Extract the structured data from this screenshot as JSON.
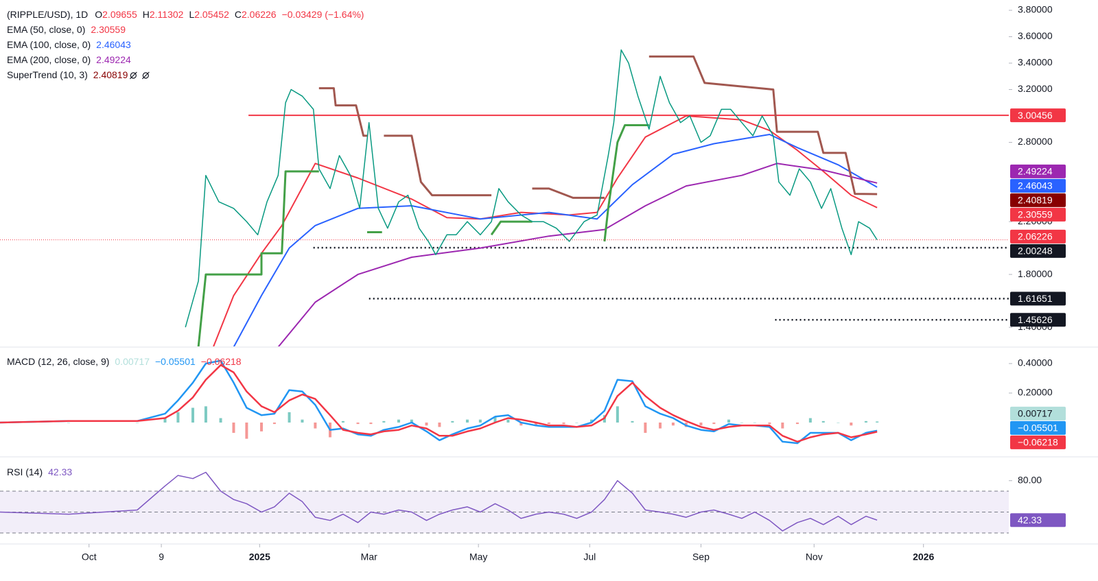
{
  "chart_data": [
    {
      "type": "line",
      "title": "(RIPPLE/USD), 1D",
      "ohlc": [
        {
          "label": "O",
          "value": 2.09655
        },
        {
          "label": "H",
          "value": 2.11302
        },
        {
          "label": "L",
          "value": 2.05452
        },
        {
          "label": "C",
          "value": 2.06226
        }
      ],
      "change": "−0.03429 (−1.64%)",
      "grid": false,
      "xlim": [
        0,
        544
      ],
      "xticks": [
        {
          "value": 48,
          "label": "Oct"
        },
        {
          "value": 87,
          "label": "9"
        },
        {
          "value": 140,
          "label": "2025"
        },
        {
          "value": 199,
          "label": "Mar"
        },
        {
          "value": 258,
          "label": "May"
        },
        {
          "value": 318,
          "label": "Jul"
        },
        {
          "value": 378,
          "label": "Sep"
        },
        {
          "value": 439,
          "label": "Nov"
        },
        {
          "value": 498,
          "label": "2026"
        }
      ],
      "ylim": [
        1.255,
        3.878
      ],
      "yticks": [
        {
          "value": 1.4,
          "label": "1.40000"
        },
        {
          "value": 1.8,
          "label": "1.80000"
        },
        {
          "value": 2.2,
          "label": "2.20000"
        },
        {
          "value": 2.8,
          "label": "2.80000"
        },
        {
          "value": 3.2,
          "label": "3.20000"
        },
        {
          "value": 3.4,
          "label": "3.40000"
        },
        {
          "value": 3.6,
          "label": "3.60000"
        },
        {
          "value": 3.8,
          "label": "3.80000"
        }
      ],
      "close": {
        "color": "#089981",
        "last_color": "#f23645",
        "x": [
          100,
          107,
          111,
          118,
          126,
          133,
          139,
          144,
          150,
          154,
          157,
          163,
          169,
          172,
          178,
          183,
          189,
          194,
          199,
          204,
          209,
          215,
          220,
          226,
          231,
          235,
          241,
          246,
          252,
          259,
          265,
          269,
          274,
          281,
          287,
          293,
          300,
          307,
          315,
          322,
          328,
          331,
          335,
          339,
          344,
          350,
          356,
          361,
          367,
          372,
          378,
          383,
          389,
          394,
          400,
          406,
          411,
          417,
          420,
          426,
          431,
          437,
          443,
          448,
          454,
          459,
          463,
          469,
          473
        ],
        "values": [
          1.4,
          1.75,
          2.55,
          2.35,
          2.3,
          2.2,
          2.1,
          2.35,
          2.55,
          3.1,
          3.2,
          3.15,
          3.05,
          2.6,
          2.45,
          2.7,
          2.55,
          2.3,
          2.95,
          2.3,
          2.15,
          2.35,
          2.4,
          2.15,
          2.05,
          1.95,
          2.1,
          2.1,
          2.2,
          2.1,
          2.2,
          2.45,
          2.35,
          2.25,
          2.2,
          2.2,
          2.15,
          2.05,
          2.2,
          2.25,
          2.7,
          2.95,
          3.5,
          3.4,
          3.15,
          2.9,
          3.3,
          3.1,
          2.95,
          3.0,
          2.8,
          2.85,
          3.05,
          3.05,
          2.95,
          2.85,
          3.0,
          2.85,
          2.5,
          2.4,
          2.6,
          2.5,
          2.3,
          2.45,
          2.15,
          1.95,
          2.2,
          2.15,
          2.06226
        ]
      },
      "series": [
        {
          "name": "EMA (50, close, 0)",
          "color": "#f23645",
          "x": [
            115,
            126,
            141,
            152,
            170,
            193,
            222,
            241,
            259,
            281,
            307,
            322,
            333,
            348,
            370,
            400,
            415,
            430,
            444,
            459,
            473
          ],
          "values": [
            1.25,
            1.64,
            1.96,
            2.17,
            2.64,
            2.53,
            2.37,
            2.23,
            2.22,
            2.27,
            2.25,
            2.27,
            2.53,
            2.84,
            3.0,
            2.97,
            2.89,
            2.74,
            2.58,
            2.4,
            2.30559
          ]
        },
        {
          "name": "EMA (100, close, 0)",
          "color": "#2962ff",
          "x": [
            126,
            141,
            156,
            170,
            193,
            222,
            259,
            296,
            322,
            341,
            363,
            385,
            415,
            430,
            452,
            473
          ],
          "values": [
            1.25,
            1.64,
            2.0,
            2.17,
            2.3,
            2.32,
            2.22,
            2.27,
            2.22,
            2.48,
            2.71,
            2.79,
            2.86,
            2.76,
            2.63,
            2.46043
          ]
        },
        {
          "name": "EMA (200, close, 0)",
          "color": "#9c27b0",
          "x": [
            150,
            170,
            193,
            222,
            259,
            296,
            326,
            348,
            370,
            400,
            419,
            444,
            473
          ],
          "values": [
            1.25,
            1.59,
            1.8,
            1.93,
            2.0,
            2.09,
            2.14,
            2.32,
            2.47,
            2.55,
            2.64,
            2.59,
            2.49224
          ]
        }
      ],
      "supertrend": {
        "name": "SuperTrend (10, 3)",
        "up_color": "#43a047",
        "down_color": "#a1574f",
        "value_color": "#880000",
        "up": {
          "x": [
            107,
            111,
            141,
            141,
            152,
            154,
            172,
            null,
            198,
            206,
            null,
            265,
            270,
            287,
            null,
            326,
            328,
            333,
            337,
            350
          ],
          "values": [
            1.25,
            1.8,
            1.8,
            1.96,
            1.96,
            2.58,
            2.58,
            null,
            2.12,
            2.12,
            null,
            2.1,
            2.2,
            2.2,
            null,
            2.05,
            2.3,
            2.8,
            2.93,
            2.93
          ]
        },
        "down": {
          "x": [
            172,
            180,
            181,
            192,
            196,
            198,
            null,
            207,
            222,
            227,
            233,
            265,
            null,
            287,
            296,
            309,
            326,
            null,
            350,
            374,
            380,
            417,
            419,
            441,
            444,
            456,
            461,
            473
          ],
          "values": [
            3.21,
            3.21,
            3.08,
            3.08,
            2.85,
            2.85,
            null,
            2.85,
            2.85,
            2.5,
            2.4,
            2.4,
            null,
            2.45,
            2.45,
            2.38,
            2.38,
            null,
            3.45,
            3.45,
            3.25,
            3.2,
            2.88,
            2.88,
            2.72,
            2.72,
            2.41,
            2.40819
          ]
        }
      },
      "levels": [
        {
          "value": 3.00456,
          "from": 134,
          "color": "#f23645",
          "style": "solid"
        },
        {
          "value": 2.00248,
          "from": 169,
          "color": "#131722",
          "style": "dotted"
        },
        {
          "value": 1.61651,
          "from": 199,
          "color": "#131722",
          "style": "dotted"
        },
        {
          "value": 1.45626,
          "from": 418,
          "color": "#131722",
          "style": "dotted"
        }
      ]
    },
    {
      "type": "macd",
      "title": "MACD (12, 26, close, 9)",
      "ylim": [
        -0.228,
        0.507
      ],
      "yticks": [
        {
          "value": 0.2,
          "label": "0.20000"
        },
        {
          "value": 0.4,
          "label": "0.40000"
        }
      ],
      "x": [
        0,
        37,
        74,
        89,
        96,
        104,
        111,
        119,
        126,
        133,
        141,
        148,
        156,
        163,
        170,
        178,
        185,
        193,
        200,
        207,
        215,
        222,
        230,
        237,
        244,
        252,
        259,
        267,
        274,
        281,
        289,
        296,
        304,
        311,
        319,
        326,
        333,
        341,
        348,
        356,
        363,
        370,
        378,
        385,
        393,
        400,
        407,
        415,
        422,
        430,
        437,
        444,
        452,
        459,
        467,
        473
      ],
      "histogram": {
        "up_color": "#26a69a",
        "down_color": "#ef5350",
        "box_color": "#b2dfdb",
        "values": [
          0,
          0,
          0,
          0.03,
          0.07,
          0.1,
          0.11,
          0.03,
          -0.07,
          -0.11,
          -0.06,
          -0.01,
          0.07,
          0.02,
          -0.04,
          -0.1,
          0.01,
          -0.01,
          -0.01,
          0.01,
          0.02,
          0.02,
          -0.02,
          -0.03,
          0.01,
          0.02,
          0.02,
          0.04,
          0.02,
          -0.02,
          -0.02,
          -0.01,
          -0.01,
          0,
          0.02,
          0.05,
          0.11,
          0.01,
          -0.07,
          -0.04,
          -0.02,
          -0.03,
          -0.02,
          -0.01,
          0.02,
          0,
          0,
          -0.01,
          -0.04,
          -0.01,
          0.03,
          0.01,
          0,
          -0.02,
          0.01,
          0.00717
        ]
      },
      "macd": {
        "color": "#2196f3",
        "last_label": "−0.05501",
        "values": [
          0,
          0.01,
          0.01,
          0.06,
          0.15,
          0.27,
          0.4,
          0.42,
          0.27,
          0.1,
          0.05,
          0.06,
          0.22,
          0.21,
          0.12,
          -0.05,
          -0.04,
          -0.08,
          -0.09,
          -0.05,
          -0.03,
          0.0,
          -0.06,
          -0.12,
          -0.08,
          -0.04,
          -0.02,
          0.04,
          0.05,
          0.0,
          -0.02,
          -0.03,
          -0.03,
          -0.03,
          0.0,
          0.08,
          0.29,
          0.28,
          0.11,
          0.06,
          0.03,
          -0.02,
          -0.05,
          -0.06,
          -0.01,
          -0.02,
          -0.02,
          -0.03,
          -0.13,
          -0.14,
          -0.07,
          -0.07,
          -0.07,
          -0.12,
          -0.07,
          -0.05501
        ]
      },
      "signal": {
        "color": "#f23645",
        "last_label": "−0.06218",
        "values": [
          0,
          0.01,
          0.01,
          0.03,
          0.08,
          0.17,
          0.29,
          0.39,
          0.34,
          0.21,
          0.11,
          0.07,
          0.15,
          0.19,
          0.16,
          0.05,
          -0.05,
          -0.07,
          -0.08,
          -0.06,
          -0.05,
          -0.02,
          -0.04,
          -0.09,
          -0.09,
          -0.06,
          -0.04,
          0.0,
          0.03,
          0.02,
          0.0,
          -0.02,
          -0.02,
          -0.03,
          -0.02,
          0.03,
          0.18,
          0.27,
          0.18,
          0.1,
          0.05,
          0.01,
          -0.03,
          -0.05,
          -0.03,
          -0.02,
          -0.02,
          -0.02,
          -0.09,
          -0.13,
          -0.1,
          -0.08,
          -0.07,
          -0.1,
          -0.08,
          -0.06218
        ]
      }
    },
    {
      "type": "rsi",
      "title": "RSI (14)",
      "color": "#7e57c2",
      "ylim": [
        20.2,
        102.1
      ],
      "yticks": [
        {
          "value": 80,
          "label": "80.00"
        }
      ],
      "band": [
        30,
        70
      ],
      "midline": 50,
      "x": [
        0,
        37,
        74,
        89,
        96,
        104,
        111,
        119,
        126,
        133,
        141,
        148,
        156,
        163,
        170,
        178,
        185,
        193,
        200,
        207,
        215,
        222,
        230,
        237,
        244,
        252,
        259,
        267,
        274,
        281,
        289,
        296,
        304,
        311,
        319,
        326,
        333,
        341,
        348,
        356,
        363,
        370,
        378,
        385,
        393,
        400,
        407,
        415,
        422,
        430,
        437,
        444,
        452,
        459,
        467,
        473
      ],
      "values": [
        50,
        48,
        52,
        75,
        85,
        82,
        88,
        70,
        62,
        58,
        50,
        55,
        68,
        60,
        45,
        42,
        48,
        40,
        50,
        48,
        52,
        50,
        42,
        48,
        52,
        55,
        50,
        58,
        52,
        44,
        48,
        50,
        48,
        44,
        50,
        62,
        80,
        68,
        52,
        50,
        48,
        45,
        50,
        52,
        48,
        44,
        50,
        42,
        32,
        40,
        44,
        38,
        46,
        38,
        46,
        42.33
      ]
    }
  ]
}
